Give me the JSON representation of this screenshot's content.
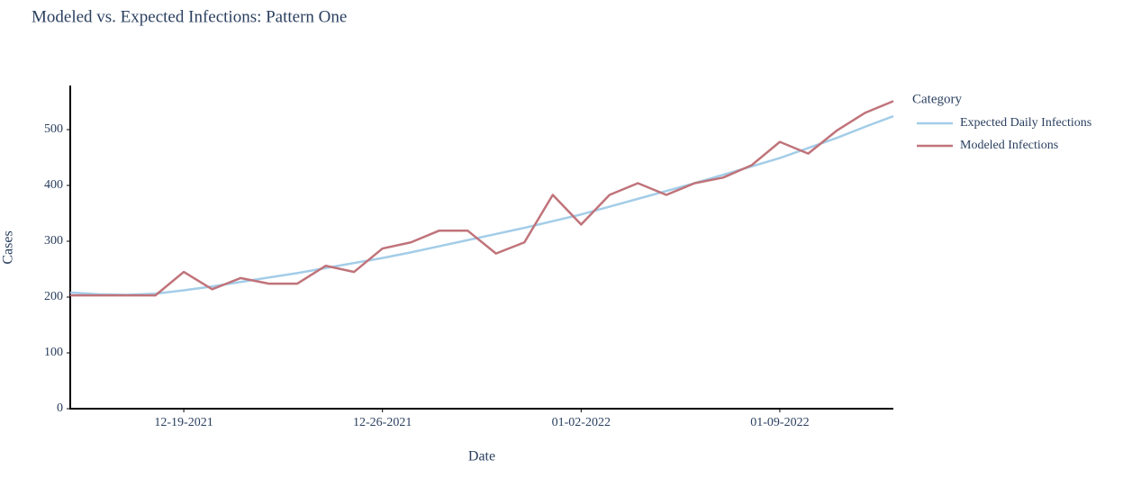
{
  "chart_data": {
    "type": "line",
    "title": "Modeled vs. Expected Infections: Pattern One",
    "x_label": "Date",
    "y_label": "Cases",
    "legend_title": "Category",
    "legend_position": "right",
    "x": [
      "2021-12-15",
      "2021-12-16",
      "2021-12-17",
      "2021-12-18",
      "2021-12-19",
      "2021-12-20",
      "2021-12-21",
      "2021-12-22",
      "2021-12-23",
      "2021-12-24",
      "2021-12-25",
      "2021-12-26",
      "2021-12-27",
      "2021-12-28",
      "2021-12-29",
      "2021-12-30",
      "2021-12-31",
      "2022-01-01",
      "2022-01-02",
      "2022-01-03",
      "2022-01-04",
      "2022-01-05",
      "2022-01-06",
      "2022-01-07",
      "2022-01-08",
      "2022-01-09",
      "2022-01-10",
      "2022-01-11",
      "2022-01-12",
      "2022-01-13"
    ],
    "series": [
      {
        "name": "Expected Daily Infections",
        "color": "#a3cde8",
        "values": [
          208,
          205,
          204,
          206,
          212,
          219,
          227,
          235,
          243,
          252,
          261,
          270,
          280,
          291,
          302,
          313,
          324,
          336,
          348,
          362,
          376,
          390,
          404,
          419,
          434,
          449,
          467,
          485,
          505,
          524
        ]
      },
      {
        "name": "Modeled Infections",
        "color": "#c0737a",
        "values": [
          203,
          203,
          203,
          203,
          245,
          214,
          234,
          224,
          224,
          256,
          245,
          287,
          298,
          319,
          319,
          278,
          298,
          383,
          330,
          383,
          404,
          383,
          404,
          414,
          436,
          478,
          457,
          498,
          530,
          551
        ]
      }
    ],
    "xlim": [
      "2021-12-15",
      "2022-01-13"
    ],
    "xticks": [
      {
        "value": "2021-12-19",
        "label": "12-19-2021"
      },
      {
        "value": "2021-12-26",
        "label": "12-26-2021"
      },
      {
        "value": "2022-01-02",
        "label": "01-02-2022"
      },
      {
        "value": "2022-01-09",
        "label": "01-09-2022"
      }
    ],
    "ylim": [
      0,
      579
    ],
    "yticks": [
      0,
      100,
      200,
      300,
      400,
      500
    ],
    "grid": false
  }
}
